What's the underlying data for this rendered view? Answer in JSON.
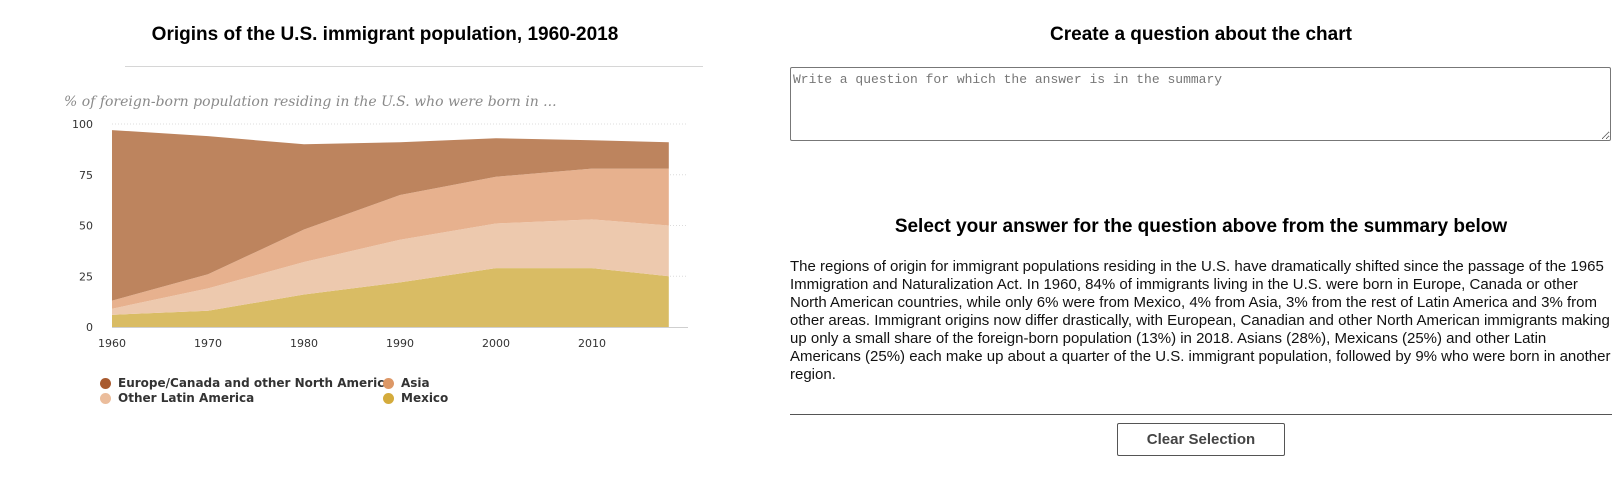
{
  "left": {
    "title": "Origins of the U.S. immigrant population, 1960-2018"
  },
  "right": {
    "question_title": "Create a question about the chart",
    "question_placeholder": "Write a question for which the answer is in the summary",
    "answer_title": "Select your answer for the question above from the summary below",
    "summary": "The regions of origin for immigrant populations residing in the U.S. have dramatically shifted since the passage of the 1965 Immigration and Naturalization Act. In 1960, 84% of immigrants living in the U.S. were born in Europe, Canada or other North American countries, while only 6% were from Mexico, 4% from Asia, 3% from the rest of Latin America and 3% from other areas. Immigrant origins now differ drastically, with European, Canadian and other North American immigrants making up only a small share of the foreign-born population (13%) in 2018. Asians (28%), Mexicans (25%) and other Latin Americans (25%) each make up about a quarter of the U.S. immigrant population, followed by 9% who were born in another region.",
    "clear_label": "Clear Selection"
  },
  "chart_data": {
    "type": "area",
    "stacked": true,
    "title": "Origins of the U.S. immigrant population, 1960-2018",
    "subtitle": "% of foreign-born population residing in the U.S. who were born in ...",
    "x": [
      1960,
      1970,
      1980,
      1990,
      2000,
      2010,
      2018
    ],
    "x_ticks": [
      1960,
      1970,
      1980,
      1990,
      2000,
      2010
    ],
    "ylim": [
      0,
      100
    ],
    "y_ticks": [
      0,
      25,
      50,
      75,
      100
    ],
    "grid": true,
    "legend_position": "bottom",
    "series": [
      {
        "name": "Mexico",
        "color": "#d9bc64",
        "values": [
          6,
          8,
          16,
          22,
          29,
          29,
          25
        ]
      },
      {
        "name": "Other Latin America",
        "color": "#edc9ae",
        "values": [
          3,
          11,
          16,
          21,
          22,
          24,
          25
        ]
      },
      {
        "name": "Asia",
        "color": "#e7b18e",
        "values": [
          4,
          7,
          16,
          22,
          23,
          25,
          28
        ]
      },
      {
        "name": "Europe/Canada and other North America",
        "color": "#bd845e",
        "values": [
          84,
          68,
          42,
          26,
          19,
          14,
          13
        ]
      }
    ],
    "legend": [
      {
        "label": "Europe/Canada and other North America",
        "color": "#a85a2f"
      },
      {
        "label": "Asia",
        "color": "#dd9867"
      },
      {
        "label": "Other Latin America",
        "color": "#ebbd9c"
      },
      {
        "label": "Mexico",
        "color": "#d4ab3c"
      }
    ]
  }
}
